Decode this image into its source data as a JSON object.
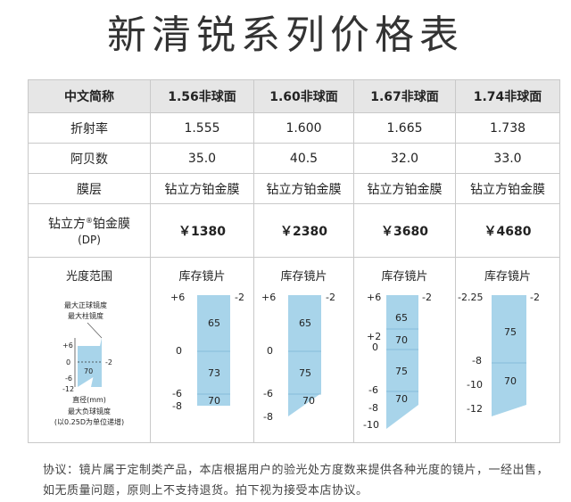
{
  "title": "新清锐系列价格表",
  "table": {
    "header": [
      "中文简称",
      "1.56非球面",
      "1.60非球面",
      "1.67非球面",
      "1.74非球面"
    ],
    "rows": [
      {
        "label": "折射率",
        "values": [
          "1.555",
          "1.600",
          "1.665",
          "1.738"
        ]
      },
      {
        "label": "阿贝数",
        "values": [
          "35.0",
          "40.5",
          "32.0",
          "33.0"
        ]
      },
      {
        "label": "膜层",
        "values": [
          "钻立方铂金膜",
          "钻立方铂金膜",
          "钻立方铂金膜",
          "钻立方铂金膜"
        ]
      }
    ],
    "price_row": {
      "label_main": "钻立方",
      "label_sup": "®",
      "label_tail": "铂金膜",
      "label_sub": "(DP)",
      "values": [
        "￥1380",
        "￥2380",
        "￥3680",
        "￥4680"
      ]
    },
    "range_row": {
      "label": "光度范围",
      "stock_label": "库存镜片",
      "legend": {
        "max_sphere": "最大正球镜度",
        "max_cyl": "最大柱镜度",
        "diameter": "直径(mm)",
        "max_minus": "最大负球镜度",
        "step_note": "(以0.25D为单位递增)",
        "ticks": [
          "+6",
          "0",
          "-6",
          "-12"
        ],
        "cyl": "-2",
        "dia": "70"
      },
      "charts": [
        {
          "top": "+6",
          "mid": "0",
          "low": "-6",
          "bottom": "-8",
          "cyl": "-2",
          "d1": "65",
          "d2": "73",
          "d3": "70"
        },
        {
          "top": "+6",
          "mid": "0",
          "low": "-6",
          "bottom": "-8",
          "cyl": "-2",
          "d1": "65",
          "d2": "75",
          "d3": "70"
        },
        {
          "top": "+6",
          "mid2": "+2",
          "mid": "0",
          "low": "-6",
          "low2": "-8",
          "bottom": "-10",
          "cyl": "-2",
          "d1": "65",
          "d2": "70",
          "d3": "75",
          "d4": "70"
        },
        {
          "top": "-2.25",
          "mid": "-8",
          "low": "-10",
          "bottom": "-12",
          "cyl": "-2",
          "d1": "75",
          "d2": "70"
        }
      ]
    }
  },
  "footer": "协议：镜片属于定制类产品，本店根据用户的验光处方度数来提供各种光度的镜片，一经出售，如无质量问题，原则上不支持退货。拍下视为接受本店协议。",
  "colors": {
    "accent_price": "#c8323a",
    "lens_fill": "#a8d4ea",
    "header_bg": "#e6e6e6"
  }
}
